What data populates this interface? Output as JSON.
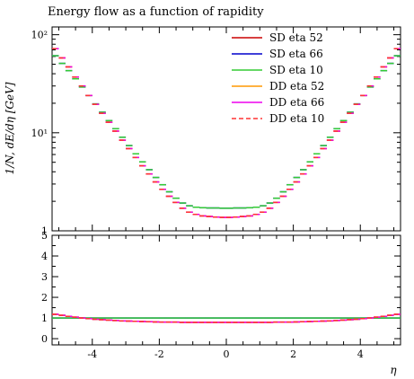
{
  "chart_data": {
    "type": "line",
    "title": "Energy flow as a function of rapidity",
    "xlabel": "η",
    "ylabel": "1/N, dE/dη [GeV]",
    "xlim": [
      -5.2,
      5.2
    ],
    "main": {
      "yscale": "log",
      "ylim": [
        1,
        120
      ],
      "ticks": [
        {
          "value": 1,
          "label": "1"
        },
        {
          "value": 10,
          "label": "10¹"
        },
        {
          "value": 100,
          "label": "10²"
        }
      ]
    },
    "ratio": {
      "ylim": [
        -0.3,
        5
      ],
      "ticks": [
        {
          "value": 0,
          "label": "0"
        },
        {
          "value": 1,
          "label": "1"
        },
        {
          "value": 2,
          "label": "2"
        },
        {
          "value": 3,
          "label": "3"
        },
        {
          "value": 4,
          "label": "4"
        },
        {
          "value": 5,
          "label": "5"
        }
      ]
    },
    "x_ticks": [
      {
        "value": -4,
        "label": "-4"
      },
      {
        "value": -2,
        "label": "-2"
      },
      {
        "value": 0,
        "label": "0"
      },
      {
        "value": 2,
        "label": "2"
      },
      {
        "value": 4,
        "label": "4"
      }
    ],
    "legend_position": "top-right",
    "bin_width": 0.2,
    "bin_centers": [
      -5.1,
      -4.9,
      -4.7,
      -4.5,
      -4.3,
      -4.1,
      -3.9,
      -3.7,
      -3.5,
      -3.3,
      -3.1,
      -2.9,
      -2.7,
      -2.5,
      -2.3,
      -2.1,
      -1.9,
      -1.7,
      -1.5,
      -1.3,
      -1.1,
      -0.9,
      -0.7,
      -0.5,
      -0.3,
      -0.1,
      0.1,
      0.3,
      0.5,
      0.7,
      0.9,
      1.1,
      1.3,
      1.5,
      1.7,
      1.9,
      2.1,
      2.3,
      2.5,
      2.7,
      2.9,
      3.1,
      3.3,
      3.5,
      3.7,
      3.9,
      4.1,
      4.3,
      4.5,
      4.7,
      4.9,
      5.1
    ],
    "series": [
      {
        "name": "SD eta 52",
        "color": "#cc0000",
        "dash": "",
        "values": [
          72,
          58,
          47,
          37,
          30,
          24,
          19.5,
          15.8,
          12.8,
          10.4,
          8.4,
          6.9,
          5.6,
          4.6,
          3.8,
          3.15,
          2.65,
          2.25,
          1.95,
          1.7,
          1.55,
          1.47,
          1.42,
          1.4,
          1.38,
          1.37,
          1.37,
          1.38,
          1.4,
          1.42,
          1.47,
          1.55,
          1.7,
          1.95,
          2.25,
          2.65,
          3.15,
          3.8,
          4.6,
          5.6,
          6.9,
          8.4,
          10.4,
          12.8,
          15.8,
          19.5,
          24,
          30,
          37,
          47,
          58,
          72
        ],
        "ratio": [
          1.18,
          1.13,
          1.08,
          1.04,
          1.0,
          0.97,
          0.94,
          0.92,
          0.9,
          0.88,
          0.86,
          0.85,
          0.84,
          0.83,
          0.82,
          0.81,
          0.8,
          0.8,
          0.8,
          0.79,
          0.79,
          0.79,
          0.79,
          0.79,
          0.79,
          0.79,
          0.79,
          0.79,
          0.79,
          0.79,
          0.79,
          0.79,
          0.79,
          0.8,
          0.8,
          0.8,
          0.81,
          0.82,
          0.83,
          0.84,
          0.85,
          0.86,
          0.88,
          0.9,
          0.92,
          0.94,
          0.97,
          1.0,
          1.04,
          1.08,
          1.13,
          1.18
        ]
      },
      {
        "name": "SD eta 66",
        "color": "#0000cc",
        "dash": "",
        "values": [
          61,
          51,
          43,
          35.5,
          29.3,
          24,
          19.7,
          16.2,
          13.3,
          11,
          9,
          7.4,
          6.1,
          5.05,
          4.2,
          3.5,
          2.95,
          2.5,
          2.15,
          1.92,
          1.8,
          1.74,
          1.72,
          1.71,
          1.71,
          1.7,
          1.7,
          1.71,
          1.71,
          1.72,
          1.74,
          1.8,
          1.92,
          2.15,
          2.5,
          2.95,
          3.5,
          4.2,
          5.05,
          6.1,
          7.4,
          9,
          11,
          13.3,
          16.2,
          19.7,
          24,
          29.3,
          35.5,
          43,
          51,
          61
        ],
        "ratio": [
          1,
          1,
          1,
          1,
          1,
          1,
          1,
          1,
          1,
          1,
          1,
          1,
          1,
          1,
          1,
          1,
          1,
          1,
          1,
          1,
          1,
          1,
          1,
          1,
          1,
          1,
          1,
          1,
          1,
          1,
          1,
          1,
          1,
          1,
          1,
          1,
          1,
          1,
          1,
          1,
          1,
          1,
          1,
          1,
          1,
          1,
          1,
          1,
          1,
          1,
          1,
          1
        ]
      },
      {
        "name": "SD eta 10",
        "color": "#33cc33",
        "dash": "",
        "values": [
          61,
          51,
          43,
          35.5,
          29.3,
          24,
          19.7,
          16.2,
          13.3,
          11,
          9,
          7.4,
          6.1,
          5.05,
          4.2,
          3.5,
          2.95,
          2.5,
          2.15,
          1.92,
          1.8,
          1.74,
          1.72,
          1.71,
          1.71,
          1.7,
          1.7,
          1.71,
          1.71,
          1.72,
          1.74,
          1.8,
          1.92,
          2.15,
          2.5,
          2.95,
          3.5,
          4.2,
          5.05,
          6.1,
          7.4,
          9,
          11,
          13.3,
          16.2,
          19.7,
          24,
          29.3,
          35.5,
          43,
          51,
          61
        ],
        "ratio": [
          1,
          1,
          1,
          1,
          1,
          1,
          1,
          1,
          1,
          1,
          1,
          1,
          1,
          1,
          1,
          1,
          1,
          1,
          1,
          1,
          1,
          1,
          1,
          1,
          1,
          1,
          1,
          1,
          1,
          1,
          1,
          1,
          1,
          1,
          1,
          1,
          1,
          1,
          1,
          1,
          1,
          1,
          1,
          1,
          1,
          1,
          1,
          1,
          1,
          1,
          1,
          1
        ]
      },
      {
        "name": "DD eta 52",
        "color": "#ff9900",
        "dash": "",
        "values": [
          72,
          58,
          47,
          37,
          30,
          24,
          19.5,
          15.8,
          12.8,
          10.4,
          8.4,
          6.9,
          5.6,
          4.6,
          3.8,
          3.15,
          2.65,
          2.25,
          1.95,
          1.7,
          1.55,
          1.47,
          1.42,
          1.4,
          1.38,
          1.37,
          1.37,
          1.38,
          1.4,
          1.42,
          1.47,
          1.55,
          1.7,
          1.95,
          2.25,
          2.65,
          3.15,
          3.8,
          4.6,
          5.6,
          6.9,
          8.4,
          10.4,
          12.8,
          15.8,
          19.5,
          24,
          30,
          37,
          47,
          58,
          72
        ],
        "ratio": [
          1.18,
          1.13,
          1.08,
          1.04,
          1.0,
          0.97,
          0.94,
          0.92,
          0.9,
          0.88,
          0.86,
          0.85,
          0.84,
          0.83,
          0.82,
          0.81,
          0.8,
          0.8,
          0.8,
          0.79,
          0.79,
          0.79,
          0.79,
          0.79,
          0.79,
          0.79,
          0.79,
          0.79,
          0.79,
          0.79,
          0.79,
          0.79,
          0.79,
          0.8,
          0.8,
          0.8,
          0.81,
          0.82,
          0.83,
          0.84,
          0.85,
          0.86,
          0.88,
          0.9,
          0.92,
          0.94,
          0.97,
          1.0,
          1.04,
          1.08,
          1.13,
          1.18
        ]
      },
      {
        "name": "DD eta 66",
        "color": "#ee00ee",
        "dash": "",
        "values": [
          72,
          58,
          47,
          37,
          30,
          24,
          19.5,
          15.8,
          12.8,
          10.4,
          8.4,
          6.9,
          5.6,
          4.6,
          3.8,
          3.15,
          2.65,
          2.25,
          1.95,
          1.7,
          1.55,
          1.47,
          1.42,
          1.4,
          1.38,
          1.37,
          1.37,
          1.38,
          1.4,
          1.42,
          1.47,
          1.55,
          1.7,
          1.95,
          2.25,
          2.65,
          3.15,
          3.8,
          4.6,
          5.6,
          6.9,
          8.4,
          10.4,
          12.8,
          15.8,
          19.5,
          24,
          30,
          37,
          47,
          58,
          72
        ],
        "ratio": [
          1.18,
          1.13,
          1.08,
          1.04,
          1.0,
          0.97,
          0.94,
          0.92,
          0.9,
          0.88,
          0.86,
          0.85,
          0.84,
          0.83,
          0.82,
          0.81,
          0.8,
          0.8,
          0.8,
          0.79,
          0.79,
          0.79,
          0.79,
          0.79,
          0.79,
          0.79,
          0.79,
          0.79,
          0.79,
          0.79,
          0.79,
          0.79,
          0.79,
          0.8,
          0.8,
          0.8,
          0.81,
          0.82,
          0.83,
          0.84,
          0.85,
          0.86,
          0.88,
          0.9,
          0.92,
          0.94,
          0.97,
          1.0,
          1.04,
          1.08,
          1.13,
          1.18
        ]
      },
      {
        "name": "DD eta 10",
        "color": "#ff3333",
        "dash": "5,3",
        "values": [
          72,
          58,
          47,
          37,
          30,
          24,
          19.5,
          15.8,
          12.8,
          10.4,
          8.4,
          6.9,
          5.6,
          4.6,
          3.8,
          3.15,
          2.65,
          2.25,
          1.95,
          1.7,
          1.55,
          1.47,
          1.42,
          1.4,
          1.38,
          1.37,
          1.37,
          1.38,
          1.4,
          1.42,
          1.47,
          1.55,
          1.7,
          1.95,
          2.25,
          2.65,
          3.15,
          3.8,
          4.6,
          5.6,
          6.9,
          8.4,
          10.4,
          12.8,
          15.8,
          19.5,
          24,
          30,
          37,
          47,
          58,
          72
        ],
        "ratio": [
          1.18,
          1.13,
          1.08,
          1.04,
          1.0,
          0.97,
          0.94,
          0.92,
          0.9,
          0.88,
          0.86,
          0.85,
          0.84,
          0.83,
          0.82,
          0.81,
          0.8,
          0.8,
          0.8,
          0.79,
          0.79,
          0.79,
          0.79,
          0.79,
          0.79,
          0.79,
          0.79,
          0.79,
          0.79,
          0.79,
          0.79,
          0.79,
          0.79,
          0.8,
          0.8,
          0.8,
          0.81,
          0.82,
          0.83,
          0.84,
          0.85,
          0.86,
          0.88,
          0.9,
          0.92,
          0.94,
          0.97,
          1.0,
          1.04,
          1.08,
          1.13,
          1.18
        ]
      }
    ]
  }
}
